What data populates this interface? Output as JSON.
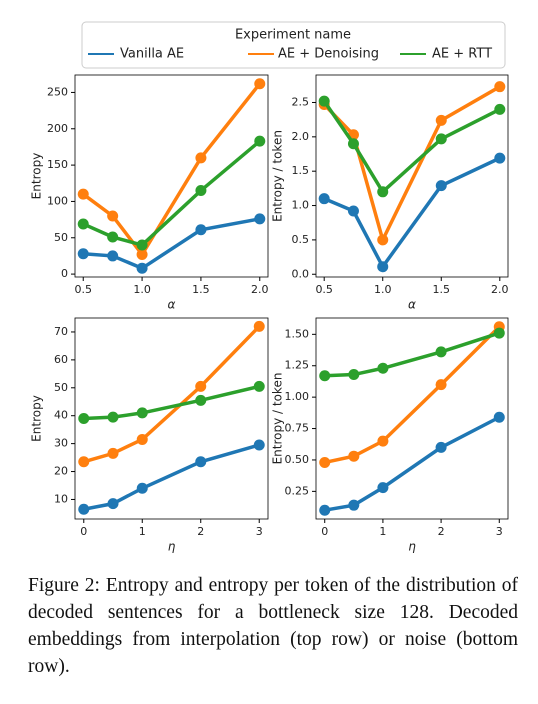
{
  "legend_title": "Experiment name",
  "chart_data": [
    {
      "type": "line",
      "xlabel": "α",
      "ylabel": "Entropy",
      "x": [
        0.5,
        0.75,
        1.0,
        1.5,
        2.0
      ],
      "xlim": [
        0.43,
        2.07
      ],
      "xticks": [
        0.5,
        {
          "value": 1,
          "label": "1.0"
        },
        1.5,
        {
          "value": 2,
          "label": "2.0"
        }
      ],
      "ylim": [
        -4,
        274
      ],
      "yticks": [
        0,
        50,
        100,
        150,
        200,
        250
      ],
      "series": [
        {
          "name": "Vanilla AE",
          "color": "#1f77b4",
          "values": [
            28,
            25,
            8,
            61,
            76
          ]
        },
        {
          "name": "AE + Denoising",
          "color": "#ff7f0e",
          "values": [
            110,
            80,
            27,
            160,
            262
          ]
        },
        {
          "name": "AE + RTT",
          "color": "#2ca02c",
          "values": [
            69,
            51,
            40,
            115,
            183
          ]
        }
      ]
    },
    {
      "type": "line",
      "xlabel": "α",
      "ylabel": "Entropy / token",
      "x": [
        0.5,
        0.75,
        1.0,
        1.5,
        2.0
      ],
      "xlim": [
        0.43,
        2.07
      ],
      "xticks": [
        0.5,
        {
          "value": 1,
          "label": "1.0"
        },
        1.5,
        {
          "value": 2,
          "label": "2.0"
        }
      ],
      "ylim": [
        -0.04,
        2.9
      ],
      "yticks": [
        {
          "value": 0,
          "label": "0.0"
        },
        0.5,
        {
          "value": 1,
          "label": "1.0"
        },
        1.5,
        {
          "value": 2,
          "label": "2.0"
        },
        2.5
      ],
      "series": [
        {
          "color": "#1f77b4",
          "values": [
            1.1,
            0.92,
            0.11,
            1.29,
            1.69
          ]
        },
        {
          "color": "#ff7f0e",
          "values": [
            2.47,
            2.03,
            0.5,
            2.24,
            2.73
          ]
        },
        {
          "color": "#2ca02c",
          "values": [
            2.52,
            1.9,
            1.2,
            1.97,
            2.4
          ]
        }
      ]
    },
    {
      "type": "line",
      "xlabel": "η",
      "ylabel": "Entropy",
      "x": [
        0,
        0.5,
        1,
        2,
        3
      ],
      "xlim": [
        -0.15,
        3.15
      ],
      "xticks": [
        0,
        1,
        2,
        3
      ],
      "ylim": [
        3,
        75
      ],
      "yticks": [
        10,
        20,
        30,
        40,
        50,
        60,
        70
      ],
      "series": [
        {
          "color": "#1f77b4",
          "values": [
            6.5,
            8.5,
            14,
            23.5,
            29.5
          ]
        },
        {
          "color": "#ff7f0e",
          "values": [
            23.5,
            26.5,
            31.5,
            50.5,
            72
          ]
        },
        {
          "color": "#2ca02c",
          "values": [
            39,
            39.5,
            41,
            45.5,
            50.5
          ]
        }
      ]
    },
    {
      "type": "line",
      "xlabel": "η",
      "ylabel": "Entropy / token",
      "x": [
        0,
        0.5,
        1,
        2,
        3
      ],
      "xlim": [
        -0.15,
        3.15
      ],
      "xticks": [
        0,
        1,
        2,
        3
      ],
      "ylim": [
        0.03,
        1.63
      ],
      "yticks": [
        0.25,
        {
          "value": 0.5,
          "label": "0.50"
        },
        0.75,
        {
          "value": 1,
          "label": "1.00"
        },
        1.25,
        {
          "value": 1.5,
          "label": "1.50"
        }
      ],
      "series": [
        {
          "color": "#1f77b4",
          "values": [
            0.1,
            0.14,
            0.28,
            0.6,
            0.84
          ]
        },
        {
          "color": "#ff7f0e",
          "values": [
            0.48,
            0.53,
            0.65,
            1.1,
            1.56
          ]
        },
        {
          "color": "#2ca02c",
          "values": [
            1.17,
            1.18,
            1.23,
            1.36,
            1.51
          ]
        }
      ]
    }
  ],
  "caption": "Figure 2: Entropy and entropy per token of the distribution of decoded sentences for a bottleneck size 128. Decoded embeddings from interpolation (top row) or noise (bottom row)."
}
